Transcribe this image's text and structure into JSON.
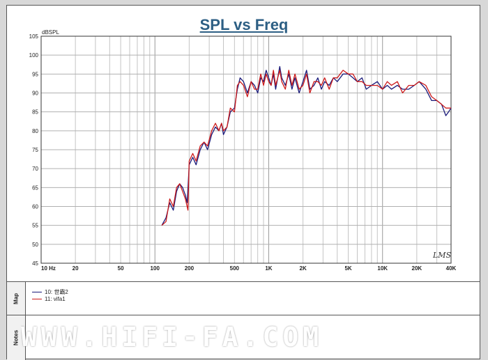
{
  "chart_data": {
    "type": "line",
    "title": "SPL vs Freq",
    "ylabel": "dBSPL",
    "xscale": "log",
    "xlim": [
      10,
      40000
    ],
    "ylim": [
      45,
      105
    ],
    "grid": true,
    "yticks": [
      45,
      50,
      55,
      60,
      65,
      70,
      75,
      80,
      85,
      90,
      95,
      100,
      105
    ],
    "xticks": [
      {
        "v": 10,
        "label": "10  Hz"
      },
      {
        "v": 20,
        "label": "20"
      },
      {
        "v": 50,
        "label": "50"
      },
      {
        "v": 100,
        "label": "100"
      },
      {
        "v": 200,
        "label": "200"
      },
      {
        "v": 500,
        "label": "500"
      },
      {
        "v": 1000,
        "label": "1K"
      },
      {
        "v": 2000,
        "label": "2K"
      },
      {
        "v": 5000,
        "label": "5K"
      },
      {
        "v": 10000,
        "label": "10K"
      },
      {
        "v": 20000,
        "label": "20K"
      },
      {
        "v": 40000,
        "label": "40K"
      }
    ],
    "series": [
      {
        "name": "10: 世霸2",
        "color": "#1a1a7a",
        "points": [
          [
            115,
            55
          ],
          [
            125,
            57
          ],
          [
            135,
            61
          ],
          [
            145,
            59
          ],
          [
            155,
            64
          ],
          [
            165,
            66
          ],
          [
            175,
            65
          ],
          [
            185,
            63
          ],
          [
            192,
            61
          ],
          [
            200,
            71
          ],
          [
            215,
            73
          ],
          [
            230,
            71
          ],
          [
            250,
            75
          ],
          [
            270,
            77
          ],
          [
            290,
            75
          ],
          [
            315,
            79
          ],
          [
            340,
            81
          ],
          [
            365,
            80
          ],
          [
            385,
            82
          ],
          [
            400,
            79
          ],
          [
            430,
            81
          ],
          [
            460,
            85
          ],
          [
            500,
            86
          ],
          [
            530,
            91
          ],
          [
            560,
            94
          ],
          [
            600,
            93
          ],
          [
            650,
            90
          ],
          [
            700,
            93
          ],
          [
            750,
            92
          ],
          [
            800,
            90
          ],
          [
            850,
            94
          ],
          [
            900,
            93
          ],
          [
            950,
            96
          ],
          [
            1000,
            94
          ],
          [
            1050,
            92
          ],
          [
            1100,
            95
          ],
          [
            1150,
            91
          ],
          [
            1250,
            97
          ],
          [
            1300,
            94
          ],
          [
            1400,
            92
          ],
          [
            1500,
            95
          ],
          [
            1600,
            91
          ],
          [
            1700,
            94
          ],
          [
            1850,
            90
          ],
          [
            2000,
            93
          ],
          [
            2150,
            96
          ],
          [
            2300,
            91
          ],
          [
            2500,
            92
          ],
          [
            2700,
            94
          ],
          [
            2900,
            91
          ],
          [
            3100,
            93
          ],
          [
            3400,
            92
          ],
          [
            3700,
            94
          ],
          [
            4000,
            93
          ],
          [
            4500,
            95
          ],
          [
            5000,
            95
          ],
          [
            5500,
            94
          ],
          [
            6000,
            93
          ],
          [
            6600,
            94
          ],
          [
            7200,
            91
          ],
          [
            8000,
            92
          ],
          [
            9000,
            93
          ],
          [
            10000,
            91
          ],
          [
            11000,
            92
          ],
          [
            12000,
            91
          ],
          [
            13500,
            92
          ],
          [
            15000,
            91
          ],
          [
            17000,
            91
          ],
          [
            19000,
            92
          ],
          [
            21000,
            93
          ],
          [
            24000,
            91
          ],
          [
            27000,
            88
          ],
          [
            30000,
            88
          ],
          [
            33000,
            87
          ],
          [
            36000,
            84
          ],
          [
            38000,
            85
          ],
          [
            40000,
            86
          ]
        ]
      },
      {
        "name": "11: vifa1",
        "color": "#cc1a1a",
        "points": [
          [
            115,
            55
          ],
          [
            125,
            56
          ],
          [
            135,
            62
          ],
          [
            145,
            60
          ],
          [
            155,
            65
          ],
          [
            165,
            66
          ],
          [
            175,
            64
          ],
          [
            185,
            62
          ],
          [
            195,
            59
          ],
          [
            200,
            72
          ],
          [
            215,
            74
          ],
          [
            230,
            72
          ],
          [
            250,
            76
          ],
          [
            270,
            77
          ],
          [
            290,
            76
          ],
          [
            315,
            80
          ],
          [
            340,
            82
          ],
          [
            365,
            80
          ],
          [
            385,
            82
          ],
          [
            400,
            80
          ],
          [
            430,
            81
          ],
          [
            460,
            86
          ],
          [
            500,
            85
          ],
          [
            530,
            92
          ],
          [
            560,
            93
          ],
          [
            600,
            92
          ],
          [
            650,
            89
          ],
          [
            700,
            93
          ],
          [
            750,
            91
          ],
          [
            800,
            91
          ],
          [
            850,
            95
          ],
          [
            900,
            92
          ],
          [
            950,
            95
          ],
          [
            1000,
            93
          ],
          [
            1050,
            92
          ],
          [
            1100,
            96
          ],
          [
            1150,
            92
          ],
          [
            1250,
            96
          ],
          [
            1300,
            93
          ],
          [
            1400,
            91
          ],
          [
            1500,
            96
          ],
          [
            1600,
            92
          ],
          [
            1700,
            95
          ],
          [
            1850,
            91
          ],
          [
            2000,
            92
          ],
          [
            2150,
            95
          ],
          [
            2300,
            90
          ],
          [
            2500,
            93
          ],
          [
            2700,
            93
          ],
          [
            2900,
            92
          ],
          [
            3100,
            94
          ],
          [
            3400,
            91
          ],
          [
            3700,
            94
          ],
          [
            4000,
            94
          ],
          [
            4500,
            96
          ],
          [
            5000,
            95
          ],
          [
            5500,
            95
          ],
          [
            6000,
            93
          ],
          [
            6600,
            93
          ],
          [
            7200,
            92
          ],
          [
            8000,
            92
          ],
          [
            9000,
            92
          ],
          [
            10000,
            91
          ],
          [
            11000,
            93
          ],
          [
            12000,
            92
          ],
          [
            13500,
            93
          ],
          [
            15000,
            90
          ],
          [
            17000,
            92
          ],
          [
            19000,
            92
          ],
          [
            21000,
            93
          ],
          [
            24000,
            92
          ],
          [
            27000,
            89
          ],
          [
            30000,
            88
          ],
          [
            33000,
            87
          ],
          [
            36000,
            86
          ],
          [
            38000,
            86
          ],
          [
            40000,
            86
          ]
        ]
      }
    ]
  },
  "lms_logo": "LMS",
  "panels": {
    "map_label": "Map",
    "notes_label": "Notes"
  },
  "watermark_text": "WWW.HIFI-FA.COM"
}
